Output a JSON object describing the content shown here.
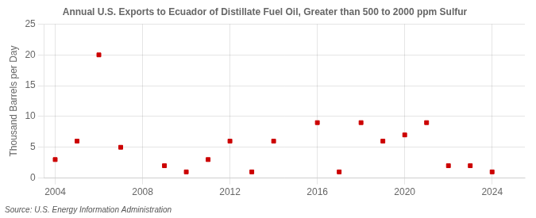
{
  "chart_data": {
    "type": "scatter",
    "title": "Annual U.S. Exports to Ecuador of Distillate Fuel Oil, Greater than 500 to 2000 ppm Sulfur",
    "ylabel": "Thousand Barrels per Day",
    "annotation": "Source: U.S. Energy Information Administration",
    "x": [
      2004,
      2005,
      2006,
      2007,
      2009,
      2010,
      2011,
      2012,
      2013,
      2014,
      2016,
      2017,
      2018,
      2019,
      2020,
      2021,
      2022,
      2023,
      2024
    ],
    "values": [
      3,
      6,
      20,
      5,
      2,
      1,
      3,
      6,
      1,
      6,
      9,
      1,
      9,
      6,
      7,
      9,
      2,
      2,
      1
    ],
    "color": "#cc0000",
    "marker": "square",
    "xlim": [
      2003.5,
      2025.5
    ],
    "xticks": [
      2004,
      2008,
      2012,
      2016,
      2020,
      2024
    ],
    "ylim": [
      0,
      25
    ],
    "yticks": [
      0,
      5,
      10,
      15,
      20,
      25
    ],
    "grid": true
  }
}
